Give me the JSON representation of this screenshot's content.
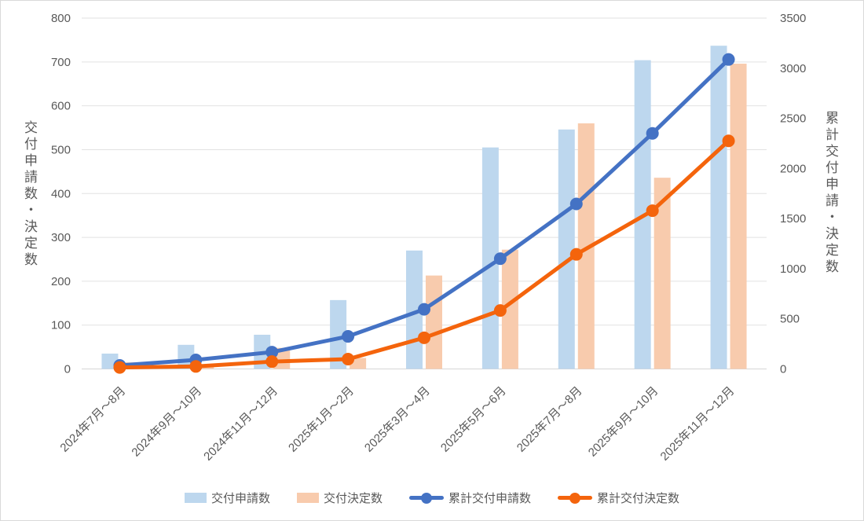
{
  "chart_data": {
    "type": "bar",
    "subtype": "combo bar + line, dual y-axis",
    "title": "",
    "categories": [
      "2024年7月〜8月",
      "2024年9月〜10月",
      "2024年11月〜12月",
      "2025年1月〜2月",
      "2025年3月〜4月",
      "2025年5月〜6月",
      "2025年7月〜8月",
      "2025年9月〜10月",
      "2025年11月〜12月"
    ],
    "series": [
      {
        "name": "交付申請数",
        "type": "bar",
        "axis": "left",
        "color": "#BDD7EE",
        "values": [
          35,
          55,
          78,
          157,
          270,
          505,
          546,
          704,
          737
        ]
      },
      {
        "name": "交付決定数",
        "type": "bar",
        "axis": "left",
        "color": "#F8CBAD",
        "values": [
          15,
          10,
          48,
          25,
          213,
          272,
          560,
          436,
          696
        ]
      },
      {
        "name": "累計交付申請数",
        "type": "line",
        "axis": "right",
        "color": "#4472C4",
        "values": [
          35,
          90,
          168,
          325,
          595,
          1100,
          1646,
          2350,
          3087
        ]
      },
      {
        "name": "累計交付決定数",
        "type": "line",
        "axis": "right",
        "color": "#F4640C",
        "values": [
          15,
          25,
          73,
          98,
          311,
          583,
          1143,
          1579,
          2275
        ]
      }
    ],
    "left_axis": {
      "title": "交付申請数・決定数",
      "min": 0,
      "max": 800,
      "step": 100,
      "tick_labels": [
        "0",
        "100",
        "200",
        "300",
        "400",
        "500",
        "600",
        "700",
        "800"
      ]
    },
    "right_axis": {
      "title": "累計交付申請・決定数",
      "min": 0,
      "max": 3500,
      "step": 500,
      "tick_labels": [
        "0",
        "500",
        "1000",
        "1500",
        "2000",
        "2500",
        "3000",
        "3500"
      ]
    },
    "grid": "horizontal only",
    "legend_position": "bottom",
    "colors": {
      "bar_applications": "#BDD7EE",
      "bar_decisions": "#F8CBAD",
      "line_cumulative_applications": "#4472C4",
      "line_cumulative_decisions": "#F4640C",
      "gridline": "#E2E2E2",
      "axis_text": "#595959"
    }
  }
}
